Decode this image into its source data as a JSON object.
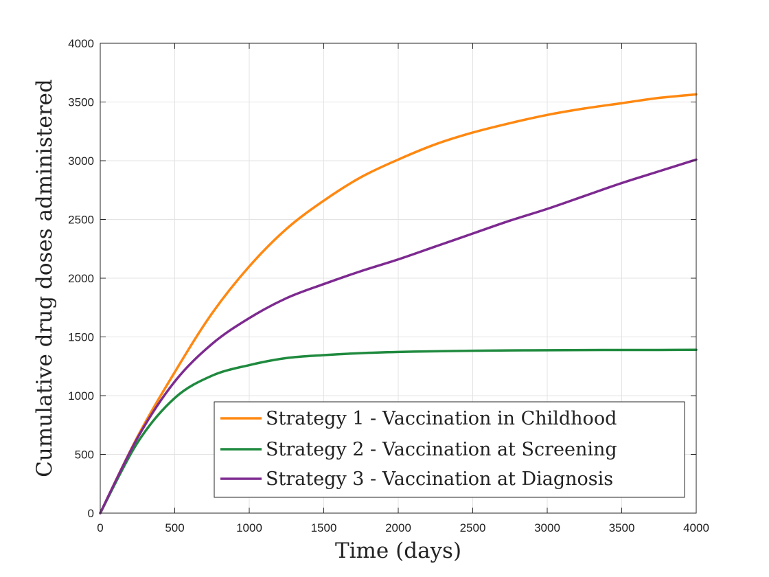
{
  "chart_data": {
    "type": "line",
    "title": "",
    "xlabel": "Time (days)",
    "ylabel": "Cumulative drug doses administered",
    "xlim": [
      0,
      4000
    ],
    "ylim": [
      0,
      4000
    ],
    "xticks": [
      0,
      500,
      1000,
      1500,
      2000,
      2500,
      3000,
      3500,
      4000
    ],
    "yticks": [
      0,
      500,
      1000,
      1500,
      2000,
      2500,
      3000,
      3500,
      4000
    ],
    "xtick_labels": [
      "0",
      "500",
      "1000",
      "1500",
      "2000",
      "2500",
      "3000",
      "3500",
      "4000"
    ],
    "ytick_labels": [
      "0",
      "500",
      "1000",
      "1500",
      "2000",
      "2500",
      "3000",
      "3500",
      "4000"
    ],
    "grid": true,
    "legend_position": "bottom-right",
    "x": [
      0,
      250,
      500,
      750,
      1000,
      1250,
      1500,
      1750,
      2000,
      2250,
      2500,
      2750,
      3000,
      3250,
      3500,
      3750,
      4000
    ],
    "series": [
      {
        "name": "Strategy 1 - Vaccination in Childhood",
        "color": "#FF8811",
        "values": [
          0,
          650,
          1200,
          1700,
          2100,
          2420,
          2660,
          2860,
          3010,
          3140,
          3240,
          3320,
          3390,
          3445,
          3490,
          3535,
          3565
        ]
      },
      {
        "name": "Strategy 2 - Vaccination at Screening",
        "color": "#1F8A3E",
        "values": [
          0,
          600,
          980,
          1170,
          1260,
          1320,
          1345,
          1362,
          1372,
          1378,
          1382,
          1385,
          1387,
          1388,
          1389,
          1389,
          1390
        ]
      },
      {
        "name": "Strategy 3 - Vaccination at Diagnosis",
        "color": "#7D2A90",
        "values": [
          0,
          640,
          1120,
          1440,
          1660,
          1830,
          1950,
          2060,
          2160,
          2270,
          2380,
          2490,
          2590,
          2700,
          2810,
          2910,
          3010
        ]
      }
    ]
  }
}
